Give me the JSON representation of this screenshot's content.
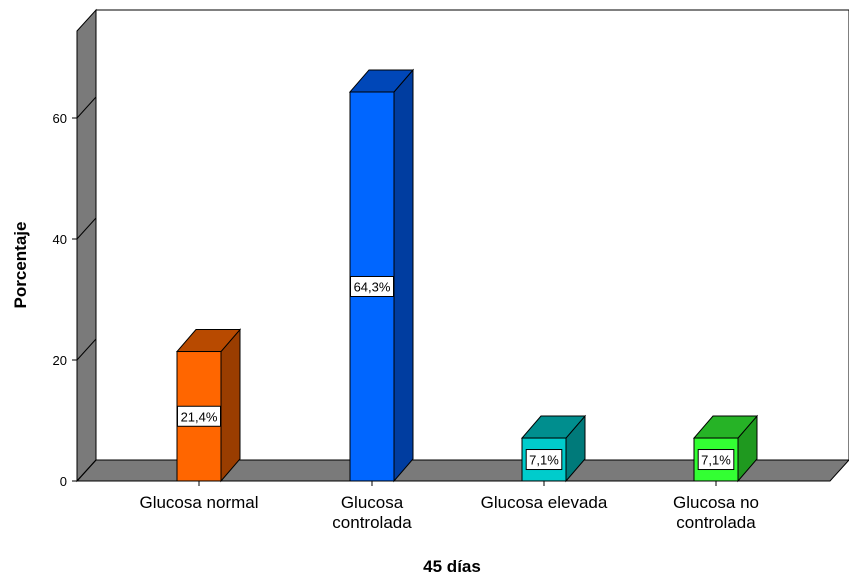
{
  "chart_data": {
    "type": "bar",
    "title": "",
    "xlabel": "45 días",
    "ylabel": "Porcentaje",
    "ylim": [
      0,
      75
    ],
    "yticks": [
      0,
      20,
      40,
      60
    ],
    "grid": false,
    "legend": "none",
    "categories": [
      [
        "Glucosa normal"
      ],
      [
        "Glucosa",
        "controlada"
      ],
      [
        "Glucosa elevada"
      ],
      [
        "Glucosa no",
        "controlada"
      ]
    ],
    "values": [
      21.4,
      64.3,
      7.1,
      7.1
    ],
    "data_labels": [
      "21,4%",
      "64,3%",
      "7,1%",
      "7,1%"
    ],
    "colors": [
      {
        "front": "#ff6600",
        "side": "#9a3d00",
        "top": "#b84a00"
      },
      {
        "front": "#0066ff",
        "side": "#003da0",
        "top": "#0047b8"
      },
      {
        "front": "#00cccc",
        "side": "#007a7a",
        "top": "#008e8e"
      },
      {
        "front": "#33ff33",
        "side": "#1f991f",
        "top": "#26b326"
      }
    ]
  }
}
